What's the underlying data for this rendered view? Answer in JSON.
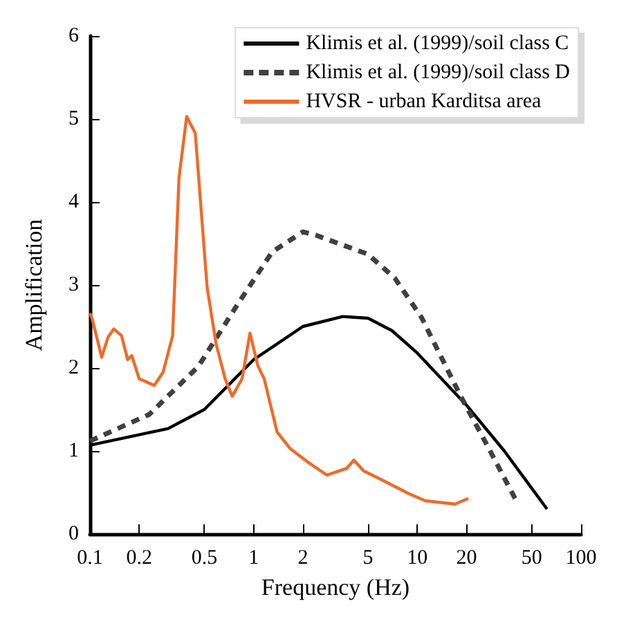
{
  "chart_data": {
    "type": "line",
    "xlabel": "Frequency (Hz)",
    "ylabel": "Amplification",
    "log": "x",
    "xlim": [
      0.1,
      100
    ],
    "xticks": [
      0.1,
      0.2,
      0.5,
      1,
      2,
      5,
      10,
      20,
      50,
      100
    ],
    "ylim": [
      0,
      6
    ],
    "yticks": [
      0,
      1,
      2,
      3,
      4,
      5,
      6
    ],
    "grid": false,
    "legend": "top right",
    "marker": "none",
    "series": [
      {
        "name": "Klimis et al. (1999)/soil class C",
        "color": "#000000",
        "line_style": "solid",
        "x": [
          0.1,
          0.3,
          0.5,
          1,
          2,
          3.5,
          5,
          7,
          10,
          20,
          34,
          62
        ],
        "values": [
          1.07,
          1.27,
          1.5,
          2.1,
          2.5,
          2.62,
          2.6,
          2.45,
          2.18,
          1.55,
          1.0,
          0.3
        ]
      },
      {
        "name": "Klimis et al. (1999)/soil class D",
        "color": "#404040",
        "line_style": "dashed",
        "x": [
          0.1,
          0.23,
          0.46,
          0.8,
          1.3,
          2,
          2.4,
          5,
          7.3,
          10.6,
          18.4,
          26.5,
          40
        ],
        "values": [
          1.12,
          1.44,
          2.02,
          2.77,
          3.4,
          3.64,
          3.6,
          3.37,
          3.08,
          2.61,
          1.66,
          1.08,
          0.41
        ]
      },
      {
        "name": "HVSR - urban Karditsa area",
        "color": "#f06a28",
        "line_style": "solid",
        "x": [
          0.1,
          0.103,
          0.118,
          0.129,
          0.14,
          0.156,
          0.17,
          0.18,
          0.2,
          0.247,
          0.28,
          0.32,
          0.35,
          0.39,
          0.44,
          0.52,
          0.59,
          0.67,
          0.74,
          0.85,
          0.95,
          1.06,
          1.16,
          1.39,
          1.67,
          2.13,
          2.8,
          3.7,
          4.1,
          4.7,
          6.1,
          8.8,
          11.2,
          17,
          20.5
        ],
        "values": [
          2.66,
          2.6,
          2.13,
          2.37,
          2.47,
          2.39,
          2.1,
          2.15,
          1.87,
          1.79,
          1.95,
          2.39,
          4.29,
          5.03,
          4.83,
          2.97,
          2.29,
          1.87,
          1.66,
          1.87,
          2.42,
          2.03,
          1.87,
          1.23,
          1.03,
          0.87,
          0.71,
          0.79,
          0.89,
          0.76,
          0.65,
          0.49,
          0.4,
          0.36,
          0.43
        ]
      }
    ]
  }
}
